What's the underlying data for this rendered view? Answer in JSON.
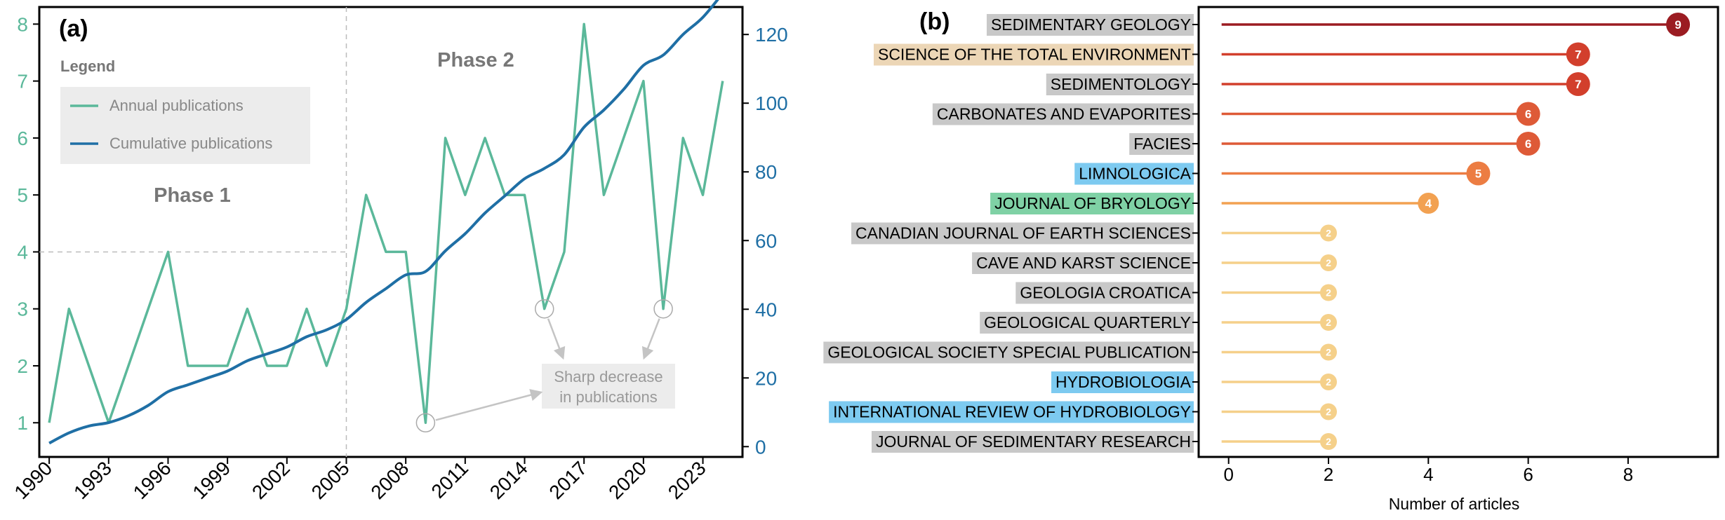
{
  "colors": {
    "annual": "#5bb89a",
    "cumulative": "#1f6fa5",
    "axis": "#000000",
    "phase_text": "#777777",
    "annotation": "#9a9a9a",
    "legend_bg": "#ececec",
    "label_grey": "#c8c8c8",
    "label_tan": "#ecd6b6",
    "label_blue": "#7dcaf0",
    "label_green": "#7fd1a5"
  },
  "panel_a": {
    "panel_label": "(a)",
    "legend_title": "Legend",
    "legend_items": [
      "Annual publications",
      "Cumulative publications"
    ],
    "phase1": "Phase 1",
    "phase2": "Phase 2",
    "annotation_line1": "Sharp decrease",
    "annotation_line2": "in publications",
    "phase_split_year": 2005,
    "phase1_guide_value": 4
  },
  "panel_b": {
    "panel_label": "(b)",
    "xlabel": "Number of articles"
  },
  "chart_data": [
    {
      "type": "line",
      "x": [
        1990,
        1991,
        1992,
        1993,
        1994,
        1995,
        1996,
        1997,
        1998,
        1999,
        2000,
        2001,
        2002,
        2003,
        2004,
        2005,
        2006,
        2007,
        2008,
        2009,
        2010,
        2011,
        2012,
        2013,
        2014,
        2015,
        2016,
        2017,
        2018,
        2019,
        2020,
        2021,
        2022,
        2023,
        2024
      ],
      "series": [
        {
          "name": "Annual publications",
          "axis": "left",
          "values": [
            1,
            3,
            2,
            1,
            2,
            3,
            4,
            2,
            2,
            2,
            3,
            2,
            2,
            3,
            2,
            3,
            5,
            4,
            4,
            1,
            6,
            5,
            6,
            5,
            5,
            3,
            4,
            8,
            5,
            6,
            7,
            3,
            6,
            5,
            7
          ]
        },
        {
          "name": "Cumulative publications",
          "axis": "right",
          "values": [
            1,
            4,
            6,
            7,
            9,
            12,
            16,
            18,
            20,
            22,
            25,
            27,
            29,
            32,
            34,
            37,
            42,
            46,
            50,
            51,
            57,
            62,
            68,
            73,
            78,
            81,
            85,
            93,
            98,
            104,
            111,
            114,
            120,
            125,
            132
          ]
        }
      ],
      "xticks": [
        "1990",
        "1993",
        "1996",
        "1999",
        "2002",
        "2005",
        "2008",
        "2011",
        "2014",
        "2017",
        "2020",
        "2023"
      ],
      "yticks_left": [
        "1",
        "2",
        "3",
        "4",
        "5",
        "6",
        "7",
        "8"
      ],
      "yticks_right": [
        "0",
        "20",
        "40",
        "60",
        "80",
        "100",
        "120"
      ],
      "ylim_left": [
        0.4,
        8.3
      ],
      "ylim_right": [
        -3,
        128
      ],
      "xlim": [
        1989.5,
        2025
      ],
      "highlighted_drops": [
        2009,
        2015,
        2021
      ],
      "legend": "top-left"
    },
    {
      "type": "bar",
      "orientation": "horizontal-lollipop",
      "categories": [
        "SEDIMENTARY GEOLOGY",
        "SCIENCE OF THE TOTAL ENVIRONMENT",
        "SEDIMENTOLOGY",
        "CARBONATES AND EVAPORITES",
        "FACIES",
        "LIMNOLOGICA",
        "JOURNAL OF BRYOLOGY",
        "CANADIAN JOURNAL OF EARTH SCIENCES",
        "CAVE AND KARST SCIENCE",
        "GEOLOGIA CROATICA",
        "GEOLOGICAL QUARTERLY",
        "GEOLOGICAL SOCIETY SPECIAL PUBLICATION",
        "HYDROBIOLOGIA",
        "INTERNATIONAL REVIEW OF HYDROBIOLOGY",
        "JOURNAL OF SEDIMENTARY RESEARCH"
      ],
      "values": [
        9,
        7,
        7,
        6,
        6,
        5,
        4,
        2,
        2,
        2,
        2,
        2,
        2,
        2,
        2
      ],
      "value_labels": [
        "9",
        "7",
        "7",
        "6",
        "6",
        "5",
        "4",
        "2",
        "2",
        "2",
        "2",
        "2",
        "2",
        "2",
        "2"
      ],
      "label_highlight": [
        "grey",
        "tan",
        "grey",
        "grey",
        "grey",
        "blue",
        "green",
        "grey",
        "grey",
        "grey",
        "grey",
        "grey",
        "blue",
        "blue",
        "grey"
      ],
      "value_colors": {
        "9": "#9b1c22",
        "7": "#d23f2c",
        "6": "#de5a37",
        "5": "#ec7d43",
        "4": "#f2a151",
        "2": "#f5d08a"
      },
      "xticks": [
        "0",
        "2",
        "4",
        "6",
        "8"
      ],
      "xlim": [
        -0.6,
        9.8
      ]
    }
  ]
}
